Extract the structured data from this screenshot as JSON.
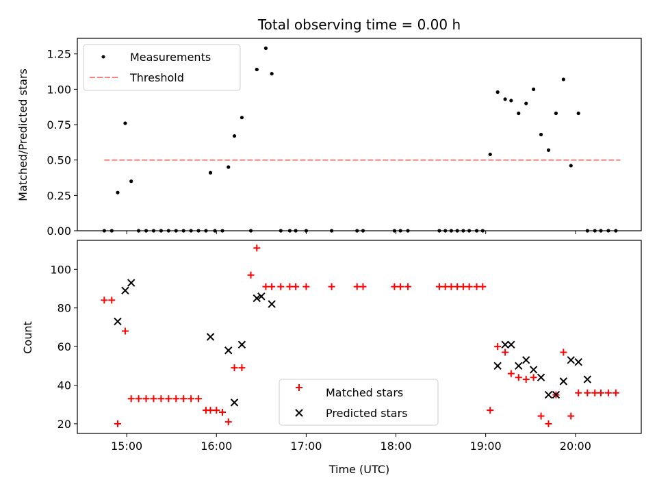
{
  "chart_data": [
    {
      "type": "scatter",
      "title": "Total observing time = 0.00 h",
      "xlabel": "",
      "ylabel": "Matched/Predicted stars",
      "xlim": [
        "14:27",
        "20:44"
      ],
      "ylim": [
        0,
        1.36
      ],
      "yticks": [
        "0.00",
        "0.25",
        "0.50",
        "0.75",
        "1.00",
        "1.25"
      ],
      "yticks_values": [
        0,
        0.25,
        0.5,
        0.75,
        1.0,
        1.25
      ],
      "xticks": [
        "15:00",
        "16:00",
        "17:00",
        "18:00",
        "19:00",
        "20:00"
      ],
      "legend_position": "upper-left",
      "series": [
        {
          "name": "Measurements",
          "color": "#000000",
          "marker": "dot",
          "x": [
            "14:45",
            "14:50",
            "14:54",
            "14:59",
            "15:03",
            "15:08",
            "15:13",
            "15:18",
            "15:23",
            "15:28",
            "15:33",
            "15:38",
            "15:43",
            "15:48",
            "15:53",
            "15:56",
            "15:59",
            "16:04",
            "16:08",
            "16:12",
            "16:17",
            "16:23",
            "16:27",
            "16:33",
            "16:37",
            "16:43",
            "16:49",
            "16:53",
            "17:00",
            "17:17",
            "17:34",
            "17:38",
            "17:59",
            "18:03",
            "18:08",
            "18:29",
            "18:33",
            "18:37",
            "18:41",
            "18:45",
            "18:49",
            "18:54",
            "18:58",
            "19:03",
            "19:08",
            "19:13",
            "19:17",
            "19:22",
            "19:27",
            "19:32",
            "19:37",
            "19:42",
            "19:47",
            "19:52",
            "19:57",
            "20:02",
            "20:08",
            "20:13",
            "20:17",
            "20:22",
            "20:27"
          ],
          "y": [
            0,
            0,
            0.27,
            0.76,
            0.35,
            0,
            0,
            0,
            0,
            0,
            0,
            0,
            0,
            0,
            0,
            0.41,
            0,
            0,
            0.45,
            0.67,
            0.8,
            0,
            1.14,
            1.29,
            1.11,
            0,
            0,
            0,
            0,
            0,
            0,
            0,
            0,
            0,
            0,
            0,
            0,
            0,
            0,
            0,
            0,
            0,
            0,
            0.54,
            0.98,
            0.93,
            0.92,
            0.83,
            0.9,
            1.0,
            0.68,
            0.57,
            0.83,
            1.07,
            0.46,
            0.83,
            0,
            0,
            0,
            0,
            0
          ]
        },
        {
          "name": "Threshold",
          "color": "#ff7f7f",
          "style": "dashed",
          "x": [
            "14:45",
            "20:30"
          ],
          "y": [
            0.5,
            0.5
          ]
        }
      ]
    },
    {
      "type": "scatter",
      "title": "",
      "xlabel": "Time (UTC)",
      "ylabel": "Count",
      "xlim": [
        "14:27",
        "20:44"
      ],
      "ylim": [
        15,
        115
      ],
      "yticks": [
        "20",
        "40",
        "60",
        "80",
        "100"
      ],
      "yticks_values": [
        20,
        40,
        60,
        80,
        100
      ],
      "xticks": [
        "15:00",
        "16:00",
        "17:00",
        "18:00",
        "19:00",
        "20:00"
      ],
      "legend_position": "lower-center",
      "series": [
        {
          "name": "Matched stars",
          "color": "#ff0000",
          "marker": "plus",
          "x": [
            "14:45",
            "14:50",
            "14:54",
            "14:59",
            "15:03",
            "15:08",
            "15:13",
            "15:18",
            "15:23",
            "15:28",
            "15:33",
            "15:38",
            "15:43",
            "15:48",
            "15:53",
            "15:56",
            "16:00",
            "16:04",
            "16:08",
            "16:12",
            "16:17",
            "16:23",
            "16:27",
            "16:33",
            "16:37",
            "16:43",
            "16:49",
            "16:53",
            "17:00",
            "17:17",
            "17:34",
            "17:38",
            "17:59",
            "18:03",
            "18:08",
            "18:29",
            "18:33",
            "18:37",
            "18:41",
            "18:45",
            "18:49",
            "18:54",
            "18:58",
            "19:03",
            "19:08",
            "19:13",
            "19:17",
            "19:22",
            "19:27",
            "19:32",
            "19:37",
            "19:42",
            "19:47",
            "19:52",
            "19:57",
            "20:02",
            "20:08",
            "20:13",
            "20:17",
            "20:22",
            "20:27"
          ],
          "y": [
            84,
            84,
            20,
            68,
            33,
            33,
            33,
            33,
            33,
            33,
            33,
            33,
            33,
            33,
            27,
            27,
            27,
            26,
            21,
            49,
            49,
            97,
            111,
            91,
            91,
            91,
            91,
            91,
            91,
            91,
            91,
            91,
            91,
            91,
            91,
            91,
            91,
            91,
            91,
            91,
            91,
            91,
            91,
            27,
            60,
            57,
            46,
            44,
            43,
            44,
            24,
            20,
            35,
            57,
            24,
            36,
            36,
            36,
            36,
            36,
            36
          ]
        },
        {
          "name": "Predicted stars",
          "color": "#000000",
          "marker": "x",
          "x": [
            "14:54",
            "14:59",
            "15:03",
            "15:56",
            "16:08",
            "16:12",
            "16:17",
            "16:27",
            "16:30",
            "16:37",
            "19:08",
            "19:13",
            "19:17",
            "19:22",
            "19:27",
            "19:32",
            "19:37",
            "19:42",
            "19:47",
            "19:52",
            "19:57",
            "20:02",
            "20:08"
          ],
          "y": [
            73,
            89,
            93,
            65,
            58,
            31,
            61,
            85,
            86,
            82,
            50,
            61,
            61,
            50,
            53,
            48,
            44,
            35,
            35,
            42,
            53,
            52,
            43
          ]
        }
      ]
    }
  ]
}
